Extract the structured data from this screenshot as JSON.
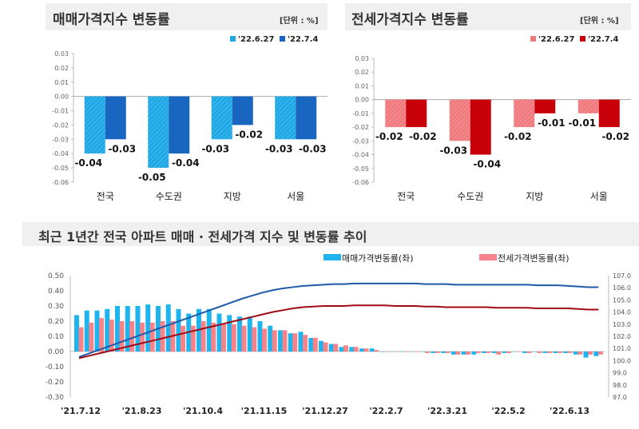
{
  "chart_data": [
    {
      "type": "bar",
      "title": "매매가격지수 변동률",
      "unit": "[단위 : %]",
      "categories": [
        "전국",
        "수도권",
        "지방",
        "서울"
      ],
      "series": [
        {
          "name": "'22.6.27",
          "values": [
            -0.04,
            -0.05,
            -0.03,
            -0.03
          ],
          "color": "#1ea9e6"
        },
        {
          "name": "'22.7.4",
          "values": [
            -0.03,
            -0.04,
            -0.02,
            -0.03
          ],
          "color": "#1866c0"
        }
      ],
      "ylim": [
        -0.06,
        0.03
      ],
      "yticks": [
        "0.03",
        "0.02",
        "0.01",
        "0.00",
        "-0.01",
        "-0.02",
        "-0.03",
        "-0.04",
        "-0.05",
        "-0.06"
      ],
      "data_labels": true
    },
    {
      "type": "bar",
      "title": "전세가격지수 변동률",
      "unit": "[단위 : %]",
      "categories": [
        "전국",
        "수도권",
        "지방",
        "서울"
      ],
      "series": [
        {
          "name": "'22.6.27",
          "values": [
            -0.02,
            -0.03,
            -0.02,
            -0.01
          ],
          "color": "#f07a7e"
        },
        {
          "name": "'22.7.4",
          "values": [
            -0.02,
            -0.04,
            -0.01,
            -0.02
          ],
          "color": "#c8000a"
        }
      ],
      "ylim": [
        -0.06,
        0.03
      ],
      "yticks": [
        "0.03",
        "0.02",
        "0.01",
        "0.00",
        "-0.01",
        "-0.02",
        "-0.03",
        "-0.04",
        "-0.05",
        "-0.06"
      ],
      "data_labels": true
    },
    {
      "type": "bar+line",
      "title": "최근 1년간 전국 아파트 매매 · 전세가격 지수 및 변동률 추이",
      "xticks": [
        "'21.7.12",
        "'21.8.23",
        "'21.10.4",
        "'21.11.15",
        "'21.12.27",
        "'22.2.7",
        "'22.3.21",
        "'22.5.2",
        "'22.6.13"
      ],
      "ylim_left": [
        -0.3,
        0.5
      ],
      "yticks_left": [
        "0.50",
        "0.40",
        "0.30",
        "0.20",
        "0.10",
        "0.00",
        "-0.10",
        "-0.20",
        "-0.30"
      ],
      "ylim_right": [
        97.0,
        107.0
      ],
      "yticks_right": [
        "107.0",
        "106.0",
        "105.0",
        "104.0",
        "103.0",
        "102.0",
        "101.0",
        "100.0",
        "99.0",
        "98.0",
        "97.0"
      ],
      "series": [
        {
          "name": "매매가격변동률(좌)",
          "type": "bar",
          "color": "#1eb4ee",
          "values": [
            0.24,
            0.27,
            0.27,
            0.28,
            0.3,
            0.3,
            0.3,
            0.31,
            0.3,
            0.31,
            0.28,
            0.25,
            0.28,
            0.28,
            0.25,
            0.24,
            0.23,
            0.23,
            0.2,
            0.17,
            0.14,
            0.12,
            0.13,
            0.09,
            0.07,
            0.05,
            0.03,
            0.03,
            0.02,
            0.02,
            0.0,
            0.0,
            0.0,
            0.0,
            0.0,
            -0.01,
            -0.01,
            -0.02,
            -0.02,
            -0.02,
            -0.01,
            -0.01,
            -0.01,
            0.0,
            -0.01,
            0.0,
            -0.01,
            -0.01,
            -0.01,
            -0.02,
            -0.04,
            -0.03
          ]
        },
        {
          "name": "전세가격변동률(좌)",
          "type": "bar",
          "color": "#f5838a",
          "values": [
            0.16,
            0.19,
            0.22,
            0.21,
            0.2,
            0.2,
            0.19,
            0.19,
            0.2,
            0.2,
            0.17,
            0.17,
            0.2,
            0.19,
            0.18,
            0.18,
            0.17,
            0.16,
            0.15,
            0.14,
            0.14,
            0.12,
            0.11,
            0.09,
            0.06,
            0.05,
            0.04,
            0.03,
            0.02,
            0.01,
            0.0,
            0.0,
            0.0,
            0.0,
            -0.01,
            -0.01,
            -0.01,
            -0.02,
            -0.02,
            -0.01,
            -0.01,
            -0.02,
            -0.01,
            0.0,
            -0.01,
            -0.01,
            -0.01,
            -0.01,
            -0.01,
            -0.02,
            -0.02,
            -0.02
          ]
        },
        {
          "type": "line",
          "axis": "right",
          "color": "#1e5aa8",
          "values": [
            100.3,
            100.6,
            100.9,
            101.2,
            101.5,
            101.8,
            102.1,
            102.4,
            102.7,
            103.0,
            103.3,
            103.6,
            103.9,
            104.2,
            104.5,
            104.8,
            105.1,
            105.35,
            105.6,
            105.8,
            105.95,
            106.05,
            106.15,
            106.2,
            106.25,
            106.3,
            106.3,
            106.35,
            106.35,
            106.35,
            106.35,
            106.35,
            106.35,
            106.35,
            106.3,
            106.3,
            106.3,
            106.25,
            106.25,
            106.25,
            106.25,
            106.25,
            106.25,
            106.25,
            106.25,
            106.2,
            106.2,
            106.2,
            106.15,
            106.1,
            106.05,
            106.05
          ]
        },
        {
          "type": "line",
          "axis": "right",
          "color": "#a00a14",
          "values": [
            100.2,
            100.4,
            100.6,
            100.8,
            101.0,
            101.2,
            101.4,
            101.6,
            101.8,
            102.0,
            102.2,
            102.4,
            102.6,
            102.8,
            103.0,
            103.2,
            103.4,
            103.6,
            103.8,
            104.0,
            104.15,
            104.3,
            104.4,
            104.45,
            104.5,
            104.5,
            104.5,
            104.55,
            104.55,
            104.55,
            104.55,
            104.5,
            104.5,
            104.5,
            104.45,
            104.45,
            104.4,
            104.4,
            104.4,
            104.4,
            104.4,
            104.35,
            104.35,
            104.35,
            104.35,
            104.3,
            104.3,
            104.3,
            104.3,
            104.25,
            104.2,
            104.2
          ]
        }
      ]
    }
  ]
}
